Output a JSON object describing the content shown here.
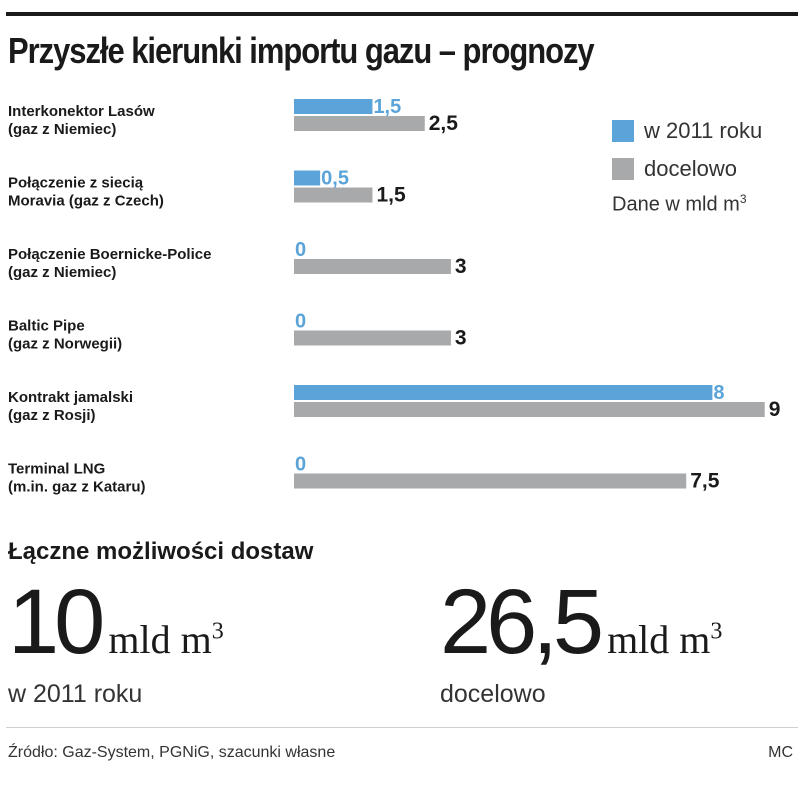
{
  "title": "Przyszłe kierunki importu gazu – prognozy",
  "legend": {
    "items": [
      {
        "label": "w 2011 roku",
        "color": "#5ba4d9"
      },
      {
        "label": "docelowo",
        "color": "#a8a9ab"
      }
    ],
    "note_text": "Dane w mld m",
    "note_sup": "3"
  },
  "chart_data": {
    "type": "bar",
    "orientation": "horizontal",
    "categories": [
      [
        "Interkonektor Lasów",
        "(gaz z Niemiec)"
      ],
      [
        "Połączenie z siecią",
        "Moravia (gaz z Czech)"
      ],
      [
        "Połączenie Boernicke-Police",
        "(gaz z Niemiec)"
      ],
      [
        "Baltic Pipe",
        "(gaz z Norwegii)"
      ],
      [
        "Kontrakt jamalski",
        "(gaz z Rosji)"
      ],
      [
        "Terminal LNG",
        "(m.in. gaz z Kataru)"
      ]
    ],
    "series": [
      {
        "name": "w 2011 roku",
        "color": "#5ba4d9",
        "values": [
          1.5,
          0.5,
          0,
          0,
          8,
          0
        ],
        "labels": [
          "1,5",
          "0,5",
          "0",
          "0",
          "8",
          "0"
        ]
      },
      {
        "name": "docelowo",
        "color": "#a8a9ab",
        "values": [
          2.5,
          1.5,
          3,
          3,
          9,
          7.5
        ],
        "labels": [
          "2,5",
          "1,5",
          "3",
          "3",
          "9",
          "7,5"
        ]
      }
    ],
    "xlim": [
      0,
      9
    ],
    "grid": false,
    "legend_position": "top-right"
  },
  "totals": {
    "heading": "Łączne możliwości dostaw",
    "items": [
      {
        "value": "10",
        "unit": "mld m",
        "unit_sup": "3",
        "caption": "w 2011 roku"
      },
      {
        "value": "26,5",
        "unit": "mld m",
        "unit_sup": "3",
        "caption": "docelowo"
      }
    ]
  },
  "footer": {
    "source": "Źródło: Gaz-System, PGNiG, szacunki własne",
    "author": "MC"
  }
}
